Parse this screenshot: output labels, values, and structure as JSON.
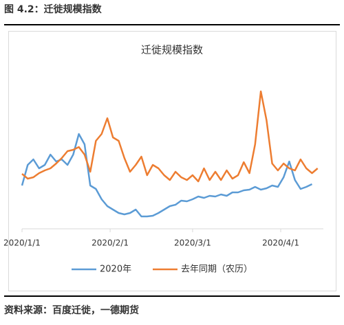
{
  "header": "图 4.2：迁徙规模指数",
  "source": "资料来源：百度迁徙，一德期货",
  "chart_data": {
    "type": "line",
    "title": "迁徙规模指数",
    "x": [
      "2020/1/1",
      "2020/1/3",
      "2020/1/5",
      "2020/1/7",
      "2020/1/9",
      "2020/1/11",
      "2020/1/13",
      "2020/1/15",
      "2020/1/17",
      "2020/1/19",
      "2020/1/21",
      "2020/1/23",
      "2020/1/25",
      "2020/1/27",
      "2020/1/29",
      "2020/1/31",
      "2020/2/2",
      "2020/2/4",
      "2020/2/6",
      "2020/2/8",
      "2020/2/10",
      "2020/2/12",
      "2020/2/14",
      "2020/2/16",
      "2020/2/18",
      "2020/2/20",
      "2020/2/22",
      "2020/2/24",
      "2020/2/26",
      "2020/2/28",
      "2020/3/1",
      "2020/3/3",
      "2020/3/5",
      "2020/3/7",
      "2020/3/9",
      "2020/3/11",
      "2020/3/13",
      "2020/3/15",
      "2020/3/17",
      "2020/3/19",
      "2020/3/21",
      "2020/3/23",
      "2020/3/25",
      "2020/3/27",
      "2020/3/29",
      "2020/3/31",
      "2020/4/2",
      "2020/4/4",
      "2020/4/6",
      "2020/4/8",
      "2020/4/10",
      "2020/4/12",
      "2020/4/14"
    ],
    "series": [
      {
        "name": "2020年",
        "color": "#5b9bd5",
        "values": [
          31.5,
          46.5,
          50.5,
          44,
          46.5,
          54,
          49,
          50.5,
          46.5,
          54,
          69,
          61.5,
          31.5,
          29,
          21.5,
          16.5,
          14,
          11.5,
          10.5,
          11.5,
          14,
          9,
          9,
          9.5,
          11.5,
          14,
          16.5,
          17.5,
          20.5,
          20,
          21.5,
          23.5,
          22.5,
          24,
          23.5,
          25,
          24,
          26.5,
          26.5,
          28,
          28.5,
          30.5,
          28.5,
          29.5,
          31.5,
          30.5,
          37.5,
          49,
          35.5,
          29,
          30.5,
          32.5,
          null
        ]
      },
      {
        "name": "去年同期（农历）",
        "color": "#ed7d31",
        "values": [
          40,
          36.5,
          37.5,
          40.5,
          42.5,
          44,
          47.5,
          51.5,
          56.5,
          57.5,
          59.5,
          54,
          41.5,
          64,
          69,
          80.5,
          66.5,
          64,
          51.5,
          41.5,
          46.5,
          52.5,
          39,
          46.5,
          44,
          39,
          35.5,
          41.5,
          37.5,
          35.5,
          39,
          34.5,
          44,
          35.5,
          41.5,
          35.5,
          42.5,
          36.5,
          39,
          48.5,
          40.5,
          61.5,
          100,
          79,
          47.5,
          42.5,
          47.5,
          44,
          42.5,
          50.5,
          44,
          40.5,
          44
        ]
      }
    ],
    "xlim": [
      "2020/1/1",
      "2020/4/16"
    ],
    "xticks": [
      "2020/1/1",
      "2020/2/1",
      "2020/3/1",
      "2020/4/1"
    ],
    "ylim": [
      0,
      100
    ],
    "legend": "bottom"
  }
}
